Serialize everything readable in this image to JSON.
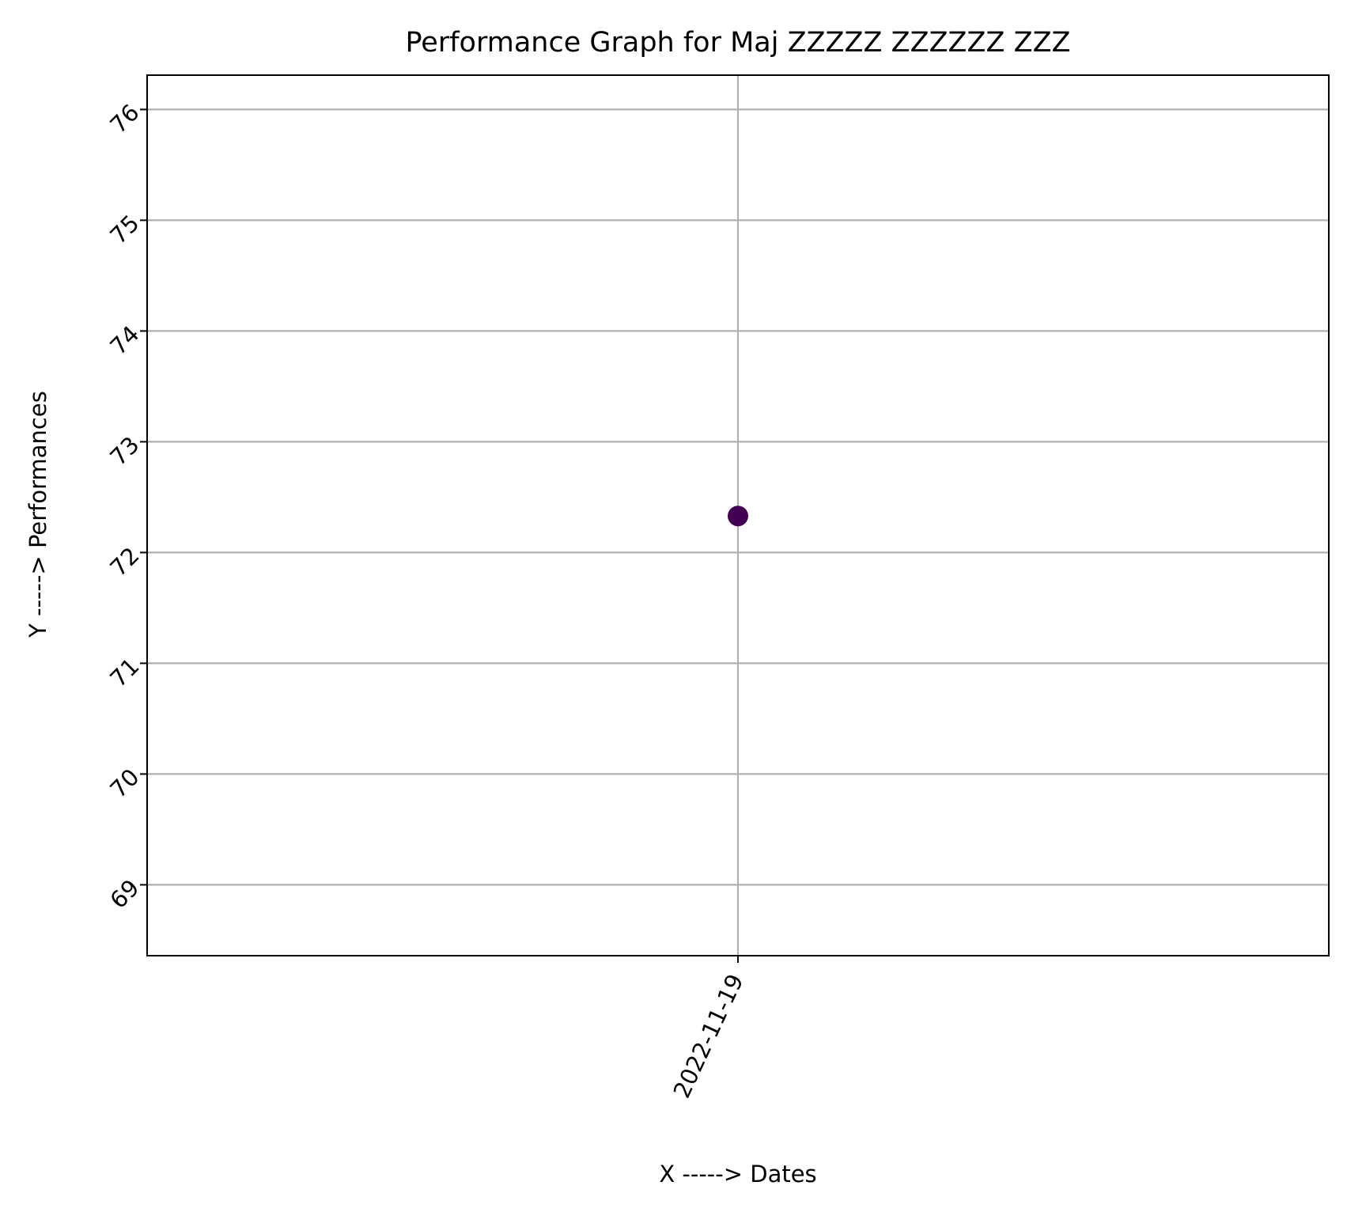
{
  "chart_data": {
    "type": "scatter",
    "title": "Performance Graph for Maj ZZZZZ ZZZZZZ ZZZ",
    "xlabel": "X -----> Dates",
    "ylabel": "Y -----> Performances",
    "x_categories": [
      "2022-11-19"
    ],
    "points": [
      {
        "x": "2022-11-19",
        "y": 72.33
      }
    ],
    "ylim": [
      68.36,
      76.31
    ],
    "yticks": [
      69,
      70,
      71,
      72,
      73,
      74,
      75,
      76
    ],
    "grid": true,
    "legend": "none",
    "point_color": "#440154",
    "gridline_color": "#b0b0b0"
  }
}
